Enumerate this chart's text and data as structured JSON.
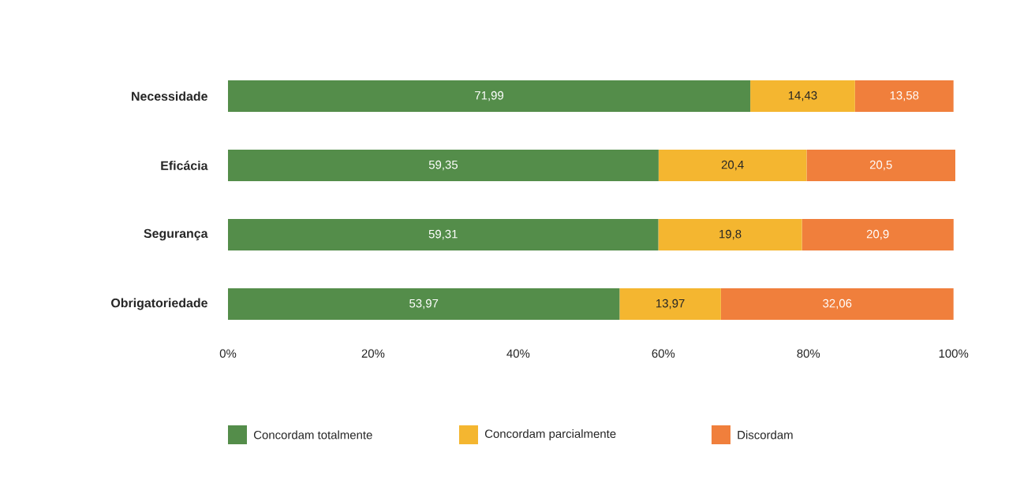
{
  "chart_data": {
    "type": "bar",
    "orientation": "horizontal",
    "stacked": true,
    "categories": [
      "Necessidade",
      "Eficácia",
      "Segurança",
      "Obrigatoriedade"
    ],
    "series": [
      {
        "name": "Concordam totalmente",
        "color": "#548d4a",
        "values": [
          71.99,
          59.35,
          59.31,
          53.97
        ],
        "value_labels": [
          "71,99",
          "59,35",
          "59,31",
          "53,97"
        ]
      },
      {
        "name": "Concordam parcialmente",
        "color": "#f4b630",
        "values": [
          14.43,
          20.4,
          19.8,
          13.97
        ],
        "value_labels": [
          "14,43",
          "20,4",
          "19,8",
          "13,97"
        ]
      },
      {
        "name": "Discordam",
        "color": "#f07f3c",
        "values": [
          13.58,
          20.5,
          20.9,
          32.06
        ],
        "value_labels": [
          "13,58",
          "20,5",
          "20,9",
          "32,06"
        ]
      }
    ],
    "xlim": [
      0,
      100.25
    ],
    "xticks": [
      {
        "value": 0,
        "label": "0%"
      },
      {
        "value": 20,
        "label": "20%"
      },
      {
        "value": 40,
        "label": "40%"
      },
      {
        "value": 60,
        "label": "60%"
      },
      {
        "value": 80,
        "label": "80%"
      },
      {
        "value": 100,
        "label": "100%"
      }
    ],
    "grid": false,
    "legend": "bottom"
  }
}
